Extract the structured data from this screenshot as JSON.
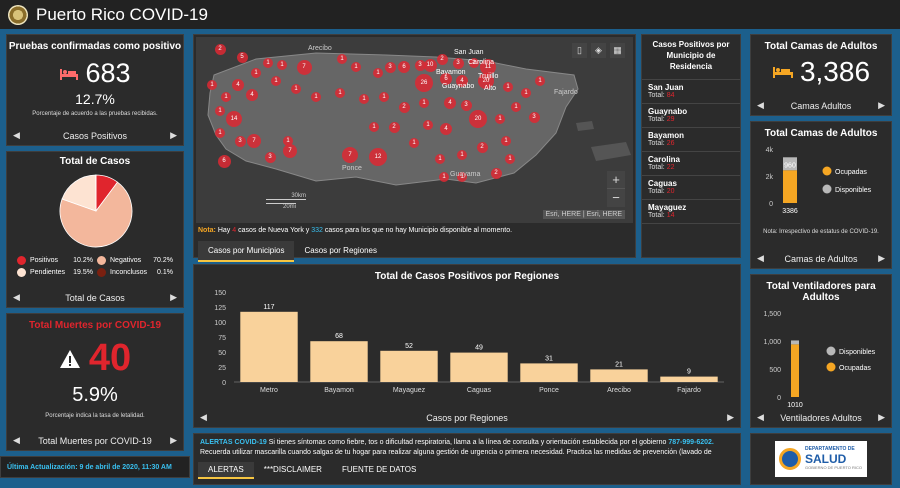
{
  "header": {
    "title": "Puerto Rico COVID-19"
  },
  "confirmed": {
    "title": "Pruebas confirmadas como positivo",
    "value": "683",
    "percent": "12.7%",
    "note": "Porcentaje de acuerdo a las pruebas recibidas.",
    "nav_label": "Casos Positivos"
  },
  "total_cases": {
    "title": "Total de Casos",
    "legend": [
      {
        "label": "Positivos",
        "value": "10.2%",
        "color": "#e0252d"
      },
      {
        "label": "Negativos",
        "value": "70.2%",
        "color": "#f3b79c"
      },
      {
        "label": "Pendientes",
        "value": "19.5%",
        "color": "#fde3d2"
      },
      {
        "label": "Inconclusos",
        "value": "0.1%",
        "color": "#7a2010"
      }
    ],
    "nav_label": "Total de Casos"
  },
  "deaths": {
    "title": "Total Muertes por COVID-19",
    "value": "40",
    "percent": "5.9%",
    "note": "Porcentaje indica la tasa de letalidad.",
    "nav_label": "Total Muertes por COVID-19"
  },
  "last_update": "Última Actualización: 9 de abril de 2020, 11:30 AM",
  "map": {
    "labels": [
      "Arecibo",
      "San Juan",
      "Carolina",
      "Bayamon",
      "Trujillo",
      "Guaynabo",
      "Alto",
      "Fajardo",
      "Ponce",
      "Guayama"
    ],
    "scale_km": "30km",
    "scale_mi": "20mi",
    "attribution": "Esri, HERE | Esri, HERE",
    "note_prefix": "Nota:",
    "note_text_1": " Hay ",
    "note_count_1": "4",
    "note_text_2": " casos de Nueva York y ",
    "note_count_2": "332",
    "note_text_3": " casos para los que no hay Municipio disponible al momento.",
    "tabs": [
      "Casos por Municipios",
      "Casos por Regiones"
    ],
    "zoom_in": "+",
    "zoom_out": "−"
  },
  "municipios": {
    "title": "Casos Positivos por Municipio de Residencia",
    "total_label": "Total:",
    "items": [
      {
        "name": "San Juan",
        "total": "84"
      },
      {
        "name": "Guaynabo",
        "total": "29"
      },
      {
        "name": "Bayamon",
        "total": "26"
      },
      {
        "name": "Carolina",
        "total": "22"
      },
      {
        "name": "Caguas",
        "total": "20"
      },
      {
        "name": "Mayaguez",
        "total": "14"
      }
    ]
  },
  "regions_chart": {
    "nav_label": "Casos por Regiones"
  },
  "chart_data": [
    {
      "type": "bar",
      "title": "Total de Casos Positivos por Regiones",
      "categories": [
        "Metro",
        "Bayamon",
        "Mayaguez",
        "Caguas",
        "Ponce",
        "Arecibo",
        "Fajardo"
      ],
      "values": [
        117,
        68,
        52,
        49,
        31,
        21,
        9
      ],
      "ylim": [
        0,
        150
      ],
      "yticks": [
        0,
        25,
        50,
        75,
        100,
        125,
        150
      ],
      "color": "#f9d29b",
      "grid": false
    },
    {
      "type": "bar",
      "title": "Total Camas de Adultos",
      "categories": [
        "3386"
      ],
      "series": [
        {
          "name": "Ocupadas",
          "values": [
            2426
          ],
          "color": "#f5a623"
        },
        {
          "name": "Disponibles",
          "values": [
            960
          ],
          "color": "#b8b8b8"
        }
      ],
      "ylim": [
        0,
        4000
      ],
      "yticks": [
        "0",
        "2k",
        "4k"
      ],
      "labels": [
        "960"
      ]
    },
    {
      "type": "bar",
      "title": "Total Ventiladores para Adultos",
      "categories": [
        "1010"
      ],
      "series": [
        {
          "name": "Disponibles",
          "values": [
            70
          ],
          "color": "#b8b8b8"
        },
        {
          "name": "Ocupadas",
          "values": [
            940
          ],
          "color": "#f5a623"
        }
      ],
      "ylim": [
        0,
        1500
      ],
      "yticks": [
        "0",
        "500",
        "1,000",
        "1,500"
      ]
    }
  ],
  "beds": {
    "title": "Total Camas de Adultos",
    "value": "3,386",
    "nav_label": "Camas Adultos",
    "note": "Nota: Irrespectivo de estatus de COVID-19.",
    "nav_label_2": "Camas de Adultos",
    "legend_1": "Ocupadas",
    "legend_2": "Disponibles",
    "bar_total": "3386",
    "bar_label": "960"
  },
  "vents": {
    "legend_1": "Disponibles",
    "legend_2": "Ocupadas",
    "bar_total": "1010",
    "nav_label": "Ventiladores Adultos"
  },
  "alerts": {
    "title": "ALERTAS COVID-19",
    "text_1": "   Si tienes síntomas como fiebre, tos o dificultad respiratoria, llama a la línea de consulta y orientación establecida por el gobierno ",
    "phone": "787-999-6202.",
    "text_2": " Recuerda utilizar mascarilla cuando salgas de tu hogar para realizar alguna gestión de urgencia o primera necesidad. Practica las medidas de prevención (lavado de",
    "tabs": [
      "ALERTAS",
      "***DISCLAIMER",
      "FUENTE DE DATOS"
    ]
  },
  "logo": {
    "line1": "DEPARTAMENTO DE",
    "line2": "SALUD",
    "line3": "GOBIERNO DE PUERTO RICO"
  }
}
